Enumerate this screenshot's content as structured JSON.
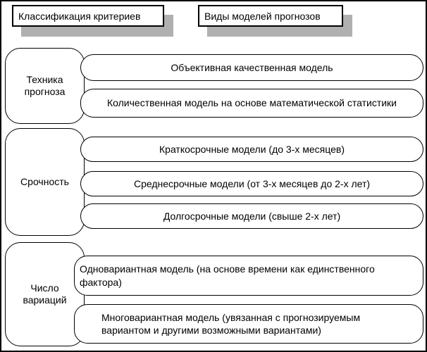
{
  "headers": [
    {
      "label": "Классификация критериев"
    },
    {
      "label": "Виды моделей прогнозов"
    }
  ],
  "sections": [
    {
      "criterion": "Техника\nпрогноза",
      "models": [
        "Объективная качественная модель",
        "Количественная модель на основе математической статистики"
      ]
    },
    {
      "criterion": "Срочность",
      "models": [
        "Краткосрочные модели (до 3-х месяцев)",
        "Среднесрочные модели (от 3-х месяцев до 2-х лет)",
        "Долгосрочные модели (свыше 2-х лет)"
      ]
    },
    {
      "criterion": "Число\nвариаций",
      "models": [
        "Одновариантная модель (на основе времени как единственного\nфактора)",
        "Многовариантная модель (увязанная с прогнозируемым\nвариантом и другими возможными вариантами)"
      ]
    }
  ],
  "colors": {
    "background": "#ffffff",
    "border": "#000000",
    "header_shadow": "#b0b0b0",
    "text": "#000000"
  }
}
